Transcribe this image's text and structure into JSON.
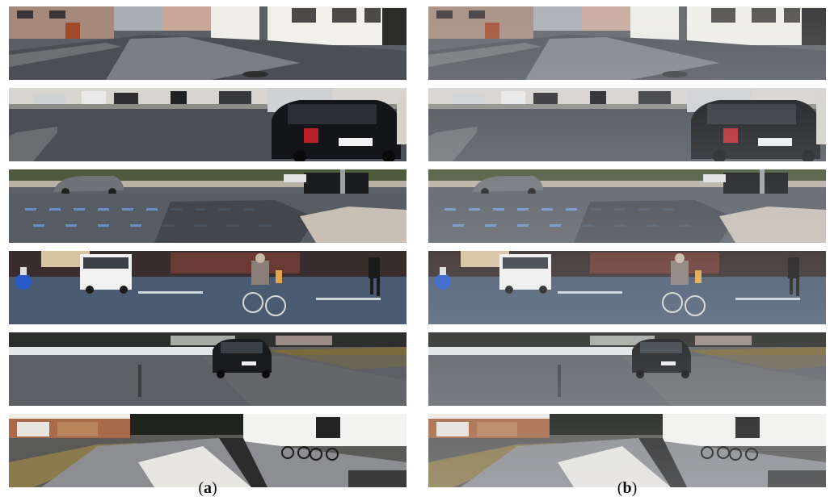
{
  "panels": [
    {
      "id": "a",
      "label": "a"
    },
    {
      "id": "b",
      "label": "b"
    }
  ],
  "strip_scenes": [
    "residential-street",
    "parked-black-car",
    "crossroad-with-cars",
    "cyclist-and-van",
    "hatchback-on-plaza",
    "sunny-lane-with-bikes"
  ],
  "colors": {
    "asphalt": "#4d5258",
    "asphalt_light": "#7a7e83",
    "building_white": "#e8e6e0",
    "brick": "#8a5a4a",
    "car_black": "#141518",
    "sky": "#c9cdd2",
    "grass": "#6f6a3a"
  }
}
